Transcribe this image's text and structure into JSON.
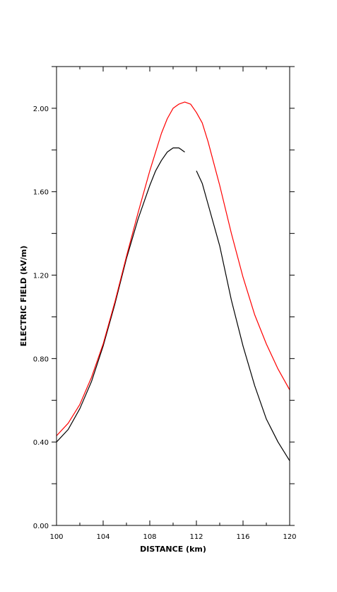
{
  "chart_data": {
    "type": "line",
    "title": "",
    "xlabel": "DISTANCE (km)",
    "ylabel": "ELECTRIC FIELD (kV/m)",
    "xlim": [
      100,
      120
    ],
    "ylim": [
      0,
      2.2
    ],
    "x_ticks": [
      {
        "value": 100,
        "label": "100"
      },
      {
        "value": 104,
        "label": "104"
      },
      {
        "value": 108,
        "label": "108"
      },
      {
        "value": 112,
        "label": "112"
      },
      {
        "value": 116,
        "label": "116"
      },
      {
        "value": 120,
        "label": "120"
      }
    ],
    "x_minor_ticks": [
      102,
      106,
      110,
      114,
      118
    ],
    "y_ticks": [
      {
        "value": 0.0,
        "label": "0.00"
      },
      {
        "value": 0.4,
        "label": "0.40"
      },
      {
        "value": 0.8,
        "label": "0.80"
      },
      {
        "value": 1.2,
        "label": "1.20"
      },
      {
        "value": 1.6,
        "label": "1.60"
      },
      {
        "value": 2.0,
        "label": "2.00"
      }
    ],
    "y_minor_ticks": [
      0.2,
      0.6,
      1.0,
      1.4,
      1.8,
      2.2
    ],
    "grid": false,
    "legend": "none",
    "series": [
      {
        "color": "#000000",
        "x": [
          100,
          101,
          102,
          103,
          104,
          105,
          106,
          107,
          108,
          108.5,
          109,
          109.5,
          110,
          110.5,
          111,
          111.5,
          112,
          112.5,
          113,
          114,
          115,
          116,
          117,
          118,
          119,
          120
        ],
        "y": [
          0.4,
          0.46,
          0.56,
          0.69,
          0.86,
          1.06,
          1.28,
          1.47,
          1.63,
          1.7,
          1.75,
          1.79,
          1.81,
          1.81,
          1.79,
          null,
          1.7,
          1.64,
          1.54,
          1.34,
          1.08,
          0.86,
          0.67,
          0.51,
          0.4,
          0.31
        ]
      },
      {
        "color": "#ff0000",
        "x": [
          100,
          101,
          102,
          103,
          104,
          105,
          106,
          107,
          108,
          108.5,
          109,
          109.5,
          110,
          110.5,
          111,
          111.5,
          112,
          112.5,
          113,
          114,
          115,
          116,
          117,
          118,
          119,
          120
        ],
        "y": [
          0.43,
          0.49,
          0.58,
          0.71,
          0.87,
          1.07,
          1.29,
          1.5,
          1.7,
          1.79,
          1.88,
          1.95,
          2.0,
          2.02,
          2.03,
          2.02,
          1.98,
          1.93,
          1.84,
          1.63,
          1.4,
          1.19,
          1.01,
          0.87,
          0.75,
          0.65
        ]
      }
    ]
  }
}
